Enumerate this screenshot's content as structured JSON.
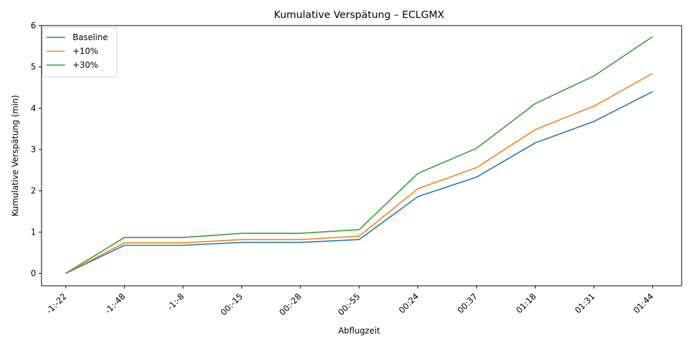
{
  "chart_data": {
    "type": "line",
    "title": "Kumulative Verspätung – ECLGMX",
    "xlabel": "Abflugzeit",
    "ylabel": "Kumulative Verspätung (min)",
    "categories": [
      "-1:-22",
      "-1:-48",
      "-1:-8",
      "00:-15",
      "00:-28",
      "00:-55",
      "00:24",
      "00:37",
      "01:18",
      "01:31",
      "01:44"
    ],
    "ylim": [
      -0.3,
      6
    ],
    "yticks": [
      0,
      1,
      2,
      3,
      4,
      5,
      6
    ],
    "grid": false,
    "legend_position": "top-left",
    "series": [
      {
        "name": "Baseline",
        "color": "#1f77b4",
        "values": [
          0,
          0.68,
          0.68,
          0.75,
          0.75,
          0.82,
          1.86,
          2.33,
          3.16,
          3.68,
          4.4
        ]
      },
      {
        "name": "+10%",
        "color": "#ff7f0e",
        "values": [
          0,
          0.74,
          0.74,
          0.82,
          0.82,
          0.9,
          2.05,
          2.56,
          3.48,
          4.05,
          4.84
        ]
      },
      {
        "name": "+30%",
        "color": "#2ca02c",
        "values": [
          0,
          0.87,
          0.87,
          0.97,
          0.97,
          1.06,
          2.42,
          3.03,
          4.11,
          4.78,
          5.73
        ]
      }
    ]
  }
}
